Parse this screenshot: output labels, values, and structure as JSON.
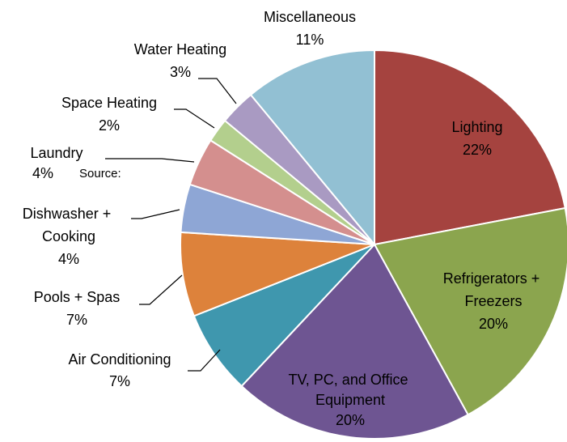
{
  "chart_data": {
    "type": "pie",
    "categories": [
      "Lighting",
      "Refrigerators + Freezers",
      "TV, PC, and Office Equipment",
      "Air Conditioning",
      "Pools + Spas",
      "Dishwasher + Cooking",
      "Laundry",
      "Space Heating",
      "Water Heating",
      "Miscellaneous"
    ],
    "values": [
      22,
      20,
      20,
      7,
      7,
      4,
      4,
      2,
      3,
      11
    ],
    "value_labels": [
      "22%",
      "20%",
      "20%",
      "7%",
      "7%",
      "4%",
      "4%",
      "2%",
      "3%",
      "11%"
    ],
    "colors": [
      "#a5433f",
      "#8ba54e",
      "#6e5592",
      "#3f97ae",
      "#dd823b",
      "#8ea6d5",
      "#d48f8e",
      "#b3cf8d",
      "#a99ac2",
      "#92c0d3"
    ],
    "annotation": "Source:"
  }
}
